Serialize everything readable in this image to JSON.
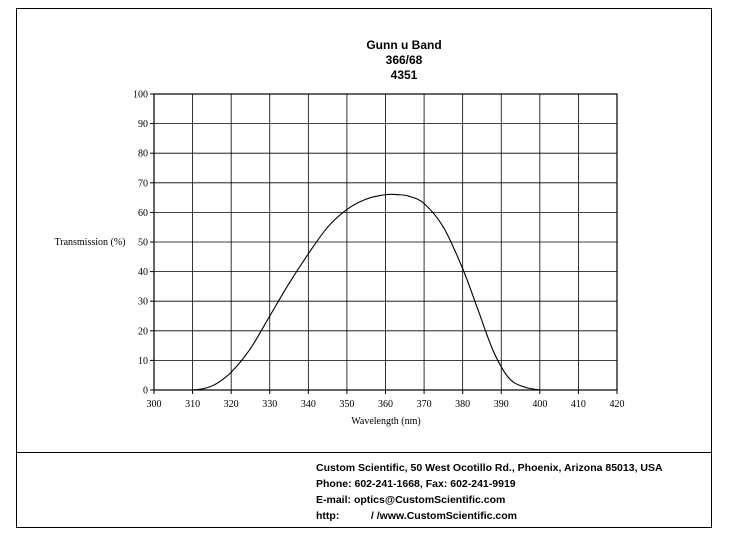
{
  "chart_data": {
    "type": "line",
    "title_lines": [
      "Gunn u Band",
      "366/68",
      "4351"
    ],
    "xlabel": "Wavelength (nm)",
    "ylabel": "Transmission (%)",
    "xlim": [
      300,
      420
    ],
    "ylim": [
      0,
      100
    ],
    "x_ticks": [
      300,
      310,
      320,
      330,
      340,
      350,
      360,
      370,
      380,
      390,
      400,
      410,
      420
    ],
    "y_ticks": [
      0,
      10,
      20,
      30,
      40,
      50,
      60,
      70,
      80,
      90,
      100
    ],
    "x_tick_labels": [
      "300",
      "310",
      "320",
      "330",
      "340",
      "350",
      "360",
      "370",
      "380",
      "390",
      "400",
      "410",
      "420"
    ],
    "y_tick_labels": [
      "0",
      "10",
      "20",
      "30",
      "40",
      "50",
      "60",
      "70",
      "80",
      "90",
      "100"
    ],
    "grid": true,
    "series": [
      {
        "x": [
          310,
          313,
          316,
          320,
          325,
          330,
          335,
          340,
          345,
          350,
          355,
          360,
          363,
          366,
          370,
          375,
          380,
          384,
          388,
          392,
          396,
          400
        ],
        "y": [
          0,
          0.5,
          2,
          6,
          14,
          25,
          36,
          46,
          55,
          61,
          64.5,
          66,
          66,
          65.5,
          63,
          55,
          41,
          27,
          13,
          4,
          1,
          0
        ]
      }
    ]
  },
  "footer": {
    "address": "Custom Scientific, 50 West Ocotillo Rd., Phoenix, Arizona 85013, USA",
    "phone_fax": "Phone:  602-241-1668, Fax:  602-241-9919",
    "email_label": "E-mail:",
    "email": "optics@CustomScientific.com",
    "http_label": "http:",
    "http": "/ /www.CustomScientific.com"
  },
  "colors": {
    "line": "#000000",
    "grid": "#000000",
    "background": "#ffffff"
  }
}
